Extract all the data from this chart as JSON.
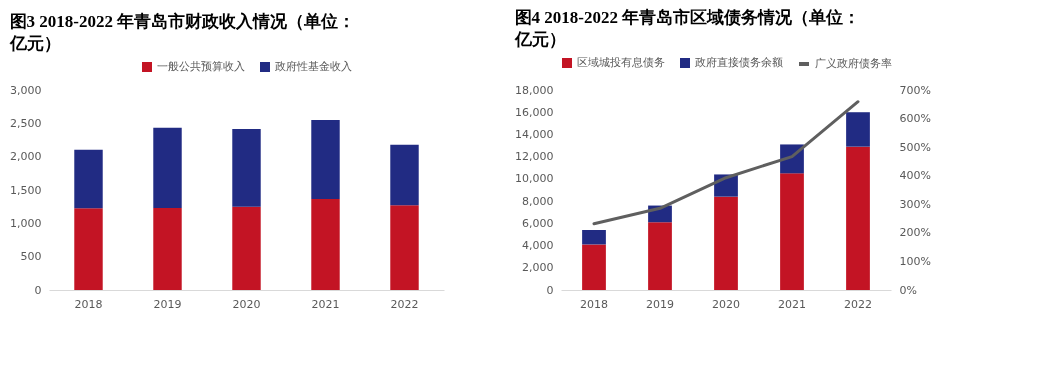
{
  "chart_data": [
    {
      "type": "bar",
      "title": "图3  2018-2022 年青岛市财政收入情况（单位：亿元）",
      "categories": [
        "2018",
        "2019",
        "2020",
        "2021",
        "2022"
      ],
      "stacked": true,
      "legend": "top",
      "series": [
        {
          "name": "一般公共预算收入",
          "color": "#c31424",
          "values": [
            1225,
            1230,
            1250,
            1365,
            1270
          ]
        },
        {
          "name": "政府性基金收入",
          "color": "#212b83",
          "values": [
            880,
            1205,
            1165,
            1185,
            910
          ]
        }
      ],
      "ylim": [
        0,
        3000
      ],
      "yticks": [
        {
          "value": 0,
          "label": "0"
        },
        {
          "value": 500,
          "label": "500"
        },
        {
          "value": 1000,
          "label": "1,000"
        },
        {
          "value": 1500,
          "label": "1,500"
        },
        {
          "value": 2000,
          "label": "2,000"
        },
        {
          "value": 2500,
          "label": "2,500"
        },
        {
          "value": 3000,
          "label": "3,000"
        }
      ]
    },
    {
      "type": "bar",
      "title": "图4  2018-2022 年青岛市区域债务情况（单位：亿元）",
      "categories": [
        "2018",
        "2019",
        "2020",
        "2021",
        "2022"
      ],
      "stacked": true,
      "legend": "top",
      "series": [
        {
          "name": "区域城投有息债务",
          "color": "#c31424",
          "values": [
            4100,
            6100,
            8400,
            10500,
            12900
          ]
        },
        {
          "name": "政府直接债务余额",
          "color": "#212b83",
          "values": [
            1300,
            1500,
            2000,
            2600,
            3100
          ]
        },
        {
          "name": "广义政府债务率",
          "type": "line",
          "axis": "y2",
          "color": "#5f5f5f",
          "values": [
            232,
            286,
            393,
            467,
            659
          ]
        }
      ],
      "ylim": [
        0,
        18000
      ],
      "yticks": [
        {
          "value": 0,
          "label": "0"
        },
        {
          "value": 2000,
          "label": "2,000"
        },
        {
          "value": 4000,
          "label": "4,000"
        },
        {
          "value": 6000,
          "label": "6,000"
        },
        {
          "value": 8000,
          "label": "8,000"
        },
        {
          "value": 10000,
          "label": "10,000"
        },
        {
          "value": 12000,
          "label": "12,000"
        },
        {
          "value": 14000,
          "label": "14,000"
        },
        {
          "value": 16000,
          "label": "16,000"
        },
        {
          "value": 18000,
          "label": "18,000"
        }
      ],
      "y2lim": [
        0,
        700
      ],
      "y2ticks": [
        {
          "value": 0,
          "label": "0%"
        },
        {
          "value": 100,
          "label": "100%"
        },
        {
          "value": 200,
          "label": "200%"
        },
        {
          "value": 300,
          "label": "300%"
        },
        {
          "value": 400,
          "label": "400%"
        },
        {
          "value": 500,
          "label": "500%"
        },
        {
          "value": 600,
          "label": "600%"
        },
        {
          "value": 700,
          "label": "700%"
        }
      ]
    }
  ]
}
